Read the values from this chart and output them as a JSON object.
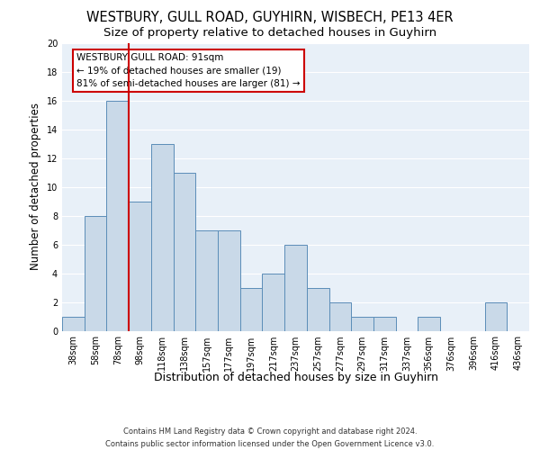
{
  "title": "WESTBURY, GULL ROAD, GUYHIRN, WISBECH, PE13 4ER",
  "subtitle": "Size of property relative to detached houses in Guyhirn",
  "xlabel": "Distribution of detached houses by size in Guyhirn",
  "ylabel": "Number of detached properties",
  "categories": [
    "38sqm",
    "58sqm",
    "78sqm",
    "98sqm",
    "118sqm",
    "138sqm",
    "157sqm",
    "177sqm",
    "197sqm",
    "217sqm",
    "237sqm",
    "257sqm",
    "277sqm",
    "297sqm",
    "317sqm",
    "337sqm",
    "356sqm",
    "376sqm",
    "396sqm",
    "416sqm",
    "436sqm"
  ],
  "values": [
    1,
    8,
    16,
    9,
    13,
    11,
    7,
    7,
    3,
    4,
    6,
    3,
    2,
    1,
    1,
    0,
    1,
    0,
    0,
    2,
    0
  ],
  "bar_color": "#c9d9e8",
  "bar_edge_color": "#5b8db8",
  "background_color": "#e8f0f8",
  "grid_color": "#ffffff",
  "annotation_box_text": "WESTBURY GULL ROAD: 91sqm\n← 19% of detached houses are smaller (19)\n81% of semi-detached houses are larger (81) →",
  "annotation_box_color": "#ffffff",
  "annotation_box_edge_color": "#cc0000",
  "ref_line_color": "#cc0000",
  "ylim": [
    0,
    20
  ],
  "yticks": [
    0,
    2,
    4,
    6,
    8,
    10,
    12,
    14,
    16,
    18,
    20
  ],
  "footer": "Contains HM Land Registry data © Crown copyright and database right 2024.\nContains public sector information licensed under the Open Government Licence v3.0.",
  "title_fontsize": 10.5,
  "subtitle_fontsize": 9.5,
  "ylabel_fontsize": 8.5,
  "xlabel_fontsize": 9,
  "tick_fontsize": 7,
  "annotation_fontsize": 7.5,
  "footer_fontsize": 6
}
